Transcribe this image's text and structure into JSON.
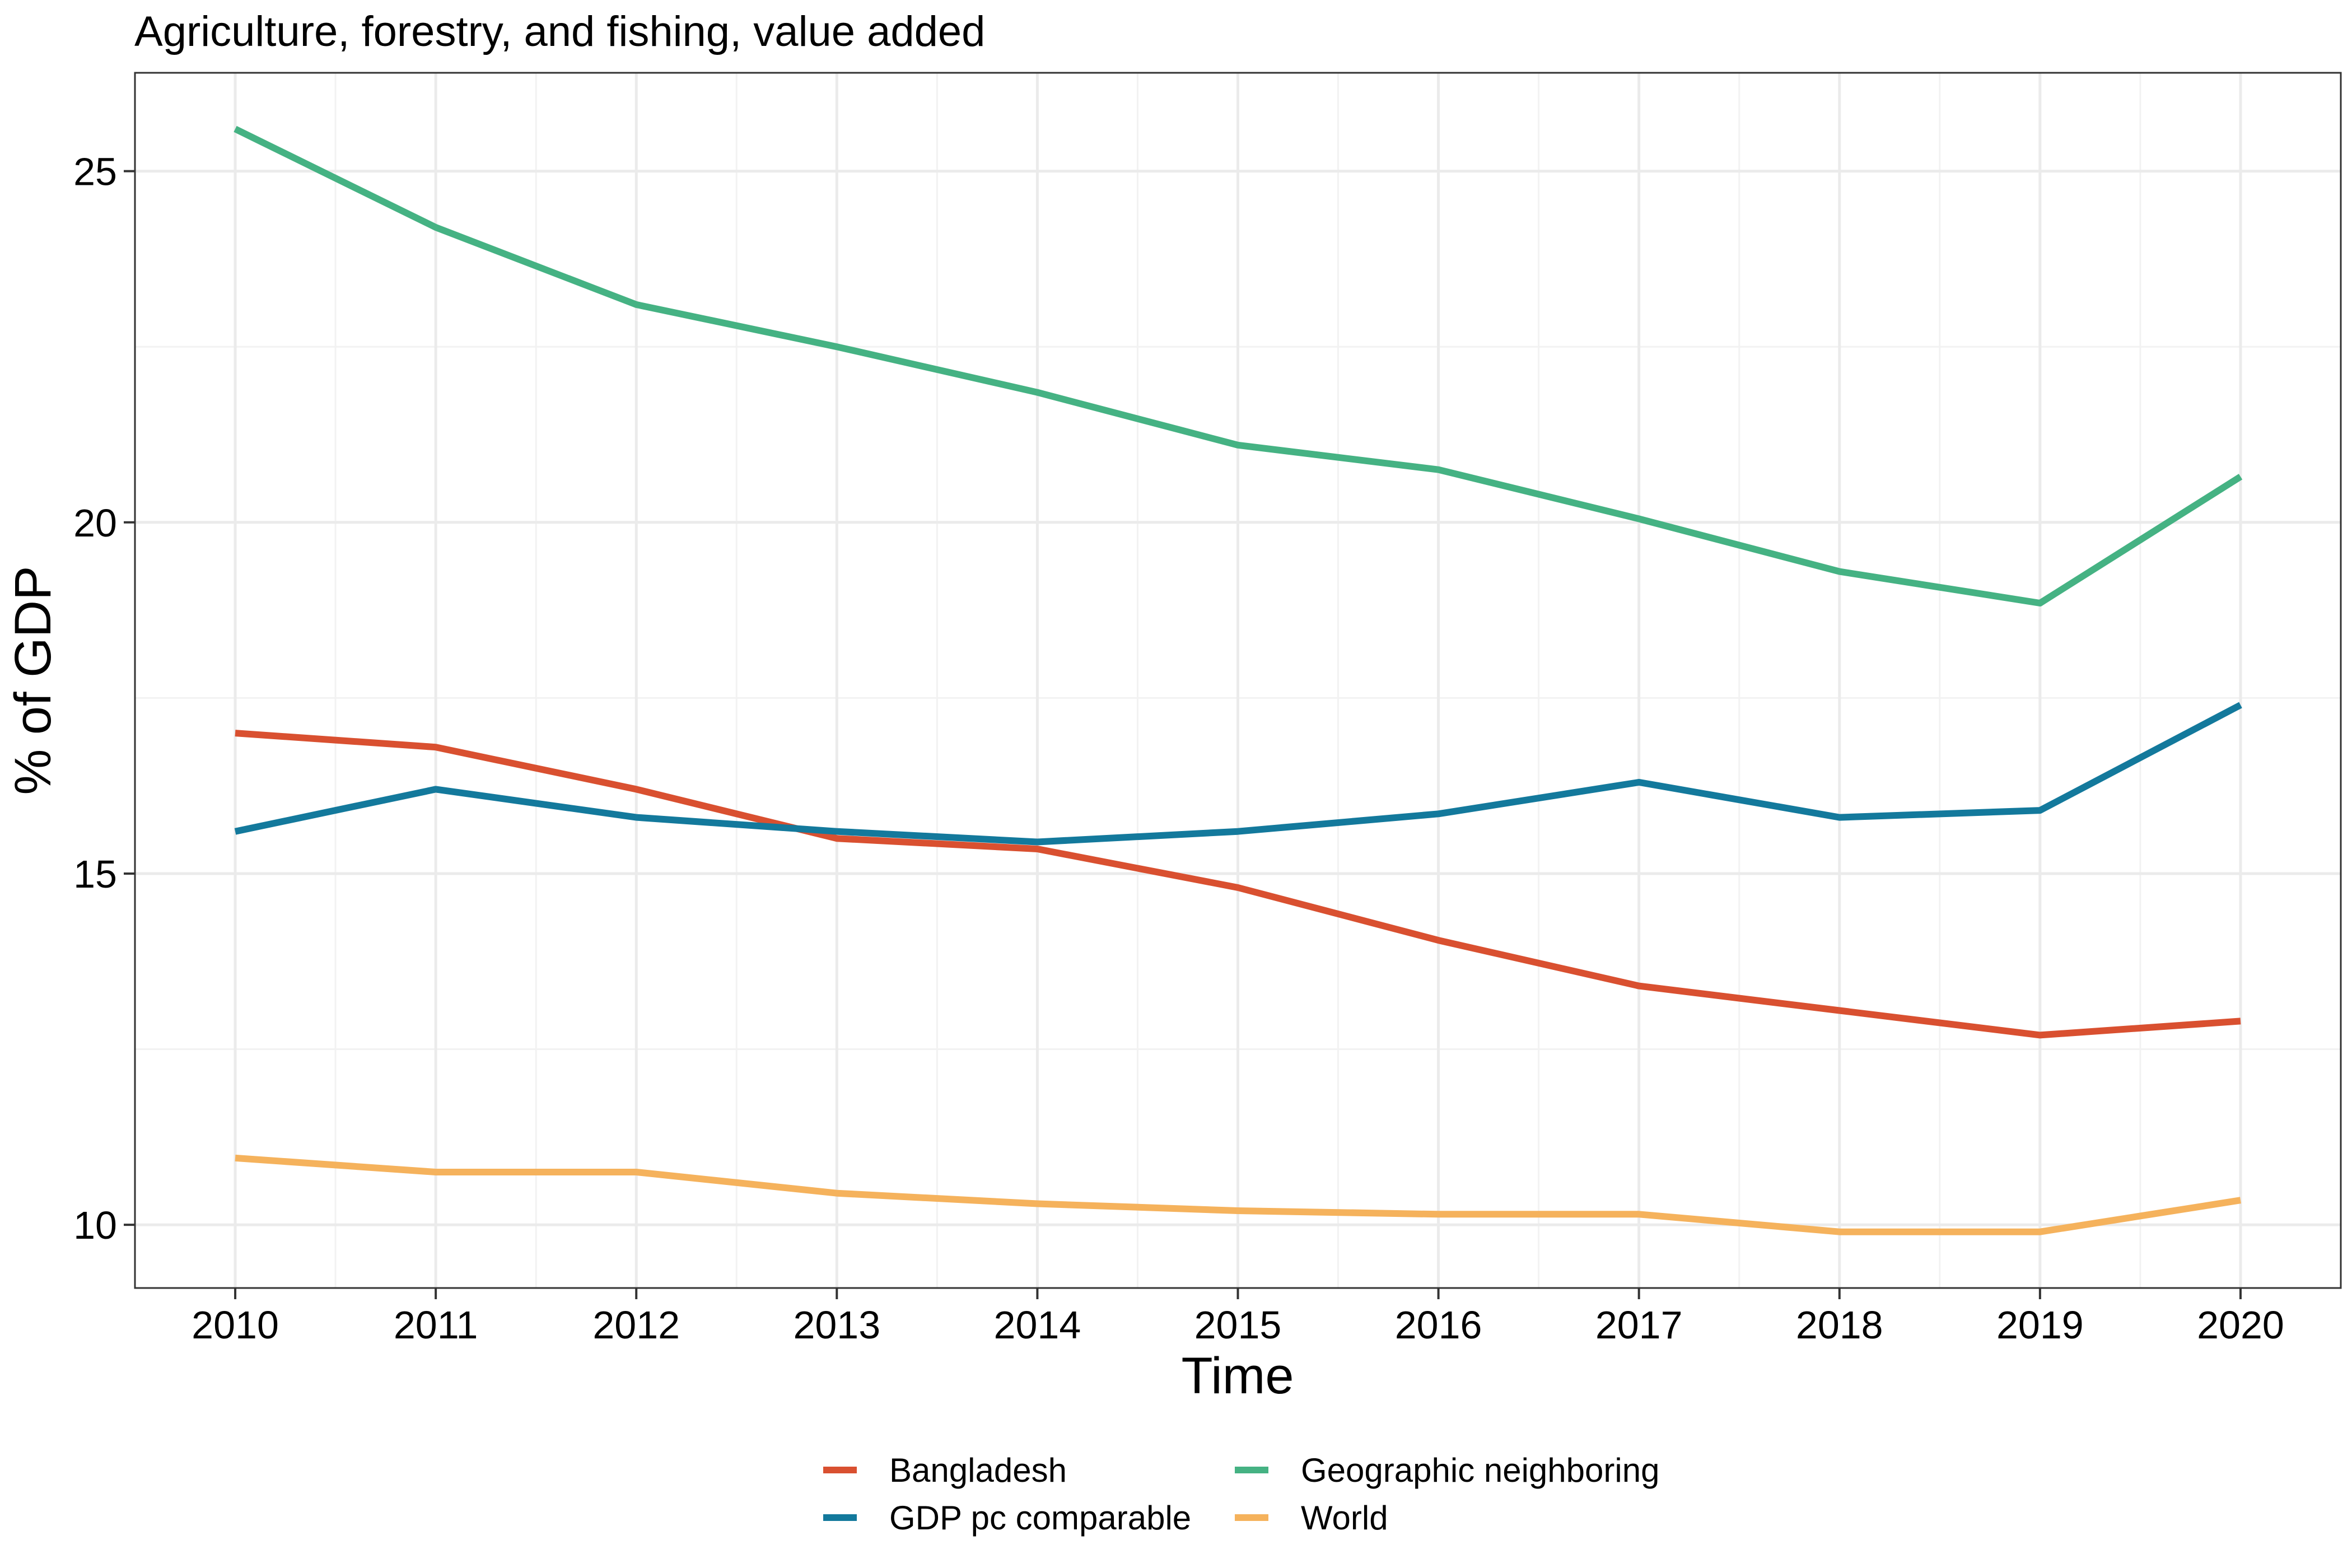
{
  "chart_data": {
    "type": "line",
    "title": "Agriculture, forestry, and fishing, value added",
    "xlabel": "Time",
    "ylabel": "% of GDP",
    "x": [
      2010,
      2011,
      2012,
      2013,
      2014,
      2015,
      2016,
      2017,
      2018,
      2019,
      2020
    ],
    "xlim": [
      2009.5,
      2020.5
    ],
    "ylim": [
      9.1,
      26.4
    ],
    "yticks": [
      10,
      15,
      20,
      25
    ],
    "grid": true,
    "legend_position": "bottom",
    "series": [
      {
        "name": "Bangladesh",
        "color": "#D95030",
        "values": [
          17.0,
          16.8,
          16.2,
          15.5,
          15.35,
          14.8,
          14.05,
          13.4,
          13.05,
          12.7,
          12.9
        ]
      },
      {
        "name": "GDP pc comparable",
        "color": "#13799C",
        "values": [
          15.6,
          16.2,
          15.8,
          15.6,
          15.45,
          15.6,
          15.85,
          16.3,
          15.8,
          15.9,
          17.4
        ]
      },
      {
        "name": "Geographic neighboring",
        "color": "#45B283",
        "values": [
          25.6,
          24.2,
          23.1,
          22.5,
          21.85,
          21.1,
          20.75,
          20.05,
          19.3,
          18.85,
          20.65
        ]
      },
      {
        "name": "World",
        "color": "#F5B25C",
        "values": [
          10.95,
          10.75,
          10.75,
          10.45,
          10.3,
          10.2,
          10.15,
          10.15,
          9.9,
          9.9,
          10.35
        ]
      }
    ]
  }
}
